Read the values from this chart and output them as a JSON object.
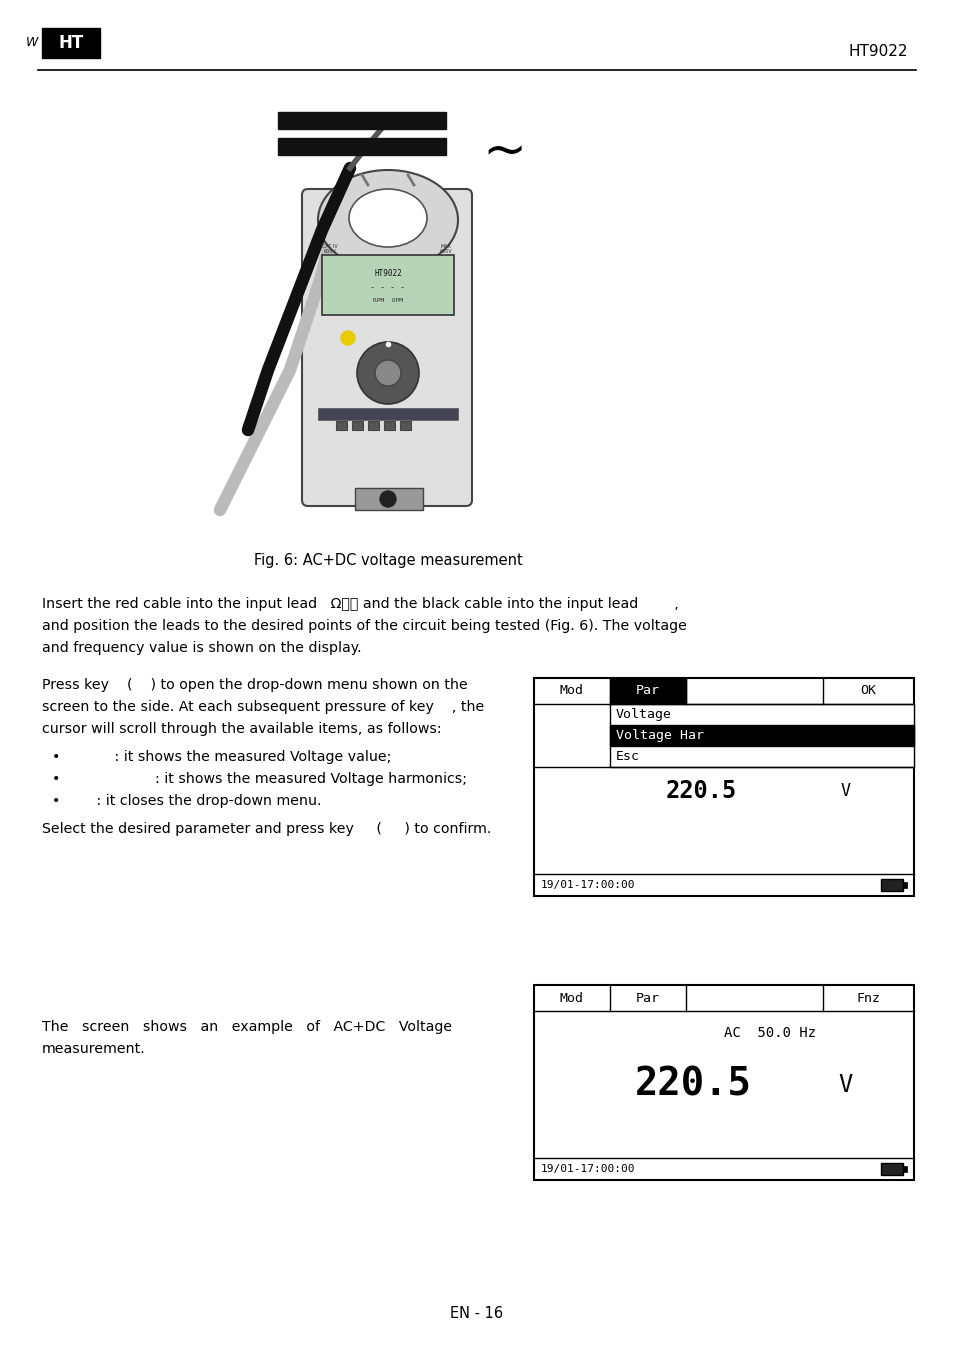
{
  "page_title": "HT9022",
  "page_number": "EN - 16",
  "fig_caption": "Fig. 6: AC+DC voltage measurement",
  "body1_line1": "Insert the red cable into the input lead   Ωᴥ⧗ and the black cable into the input lead        ,",
  "body1_line2": "and position the leads to the desired points of the circuit being tested (Fig. 6). The voltage",
  "body1_line3": "and frequency value is shown on the display.",
  "press_line1": "Press key    (    ) to open the drop-down menu shown on the",
  "press_line2": "screen to the side. At each subsequent pressure of key    , the",
  "press_line3": "cursor will scroll through the available items, as follows:",
  "bullet1": "           : it shows the measured Voltage value;",
  "bullet2": "                    : it shows the measured Voltage harmonics;",
  "bullet3": "       : it closes the drop-down menu.",
  "select_line": "Select the desired parameter and press key     (     ) to confirm.",
  "body4_line1": "The   screen   shows   an   example   of   AC+DC   Voltage",
  "body4_line2": "measurement.",
  "screen1": {
    "header": [
      "Mod",
      "Par",
      "",
      "OK"
    ],
    "menu_items": [
      "Voltage",
      "Voltage Har",
      "Esc"
    ],
    "selected_item": 1,
    "value": "220.5",
    "unit": "V",
    "timestamp": "19/01-17:00:00"
  },
  "screen2": {
    "header": [
      "Mod",
      "Par",
      "",
      "Fnz"
    ],
    "sub_header": "AC  50.0 Hz",
    "value": "220.5",
    "unit": "V",
    "timestamp": "19/01-17:00:00"
  },
  "bg_color": "#ffffff",
  "text_color": "#000000",
  "tilde_symbol": "~",
  "bullet_symbol": "•"
}
